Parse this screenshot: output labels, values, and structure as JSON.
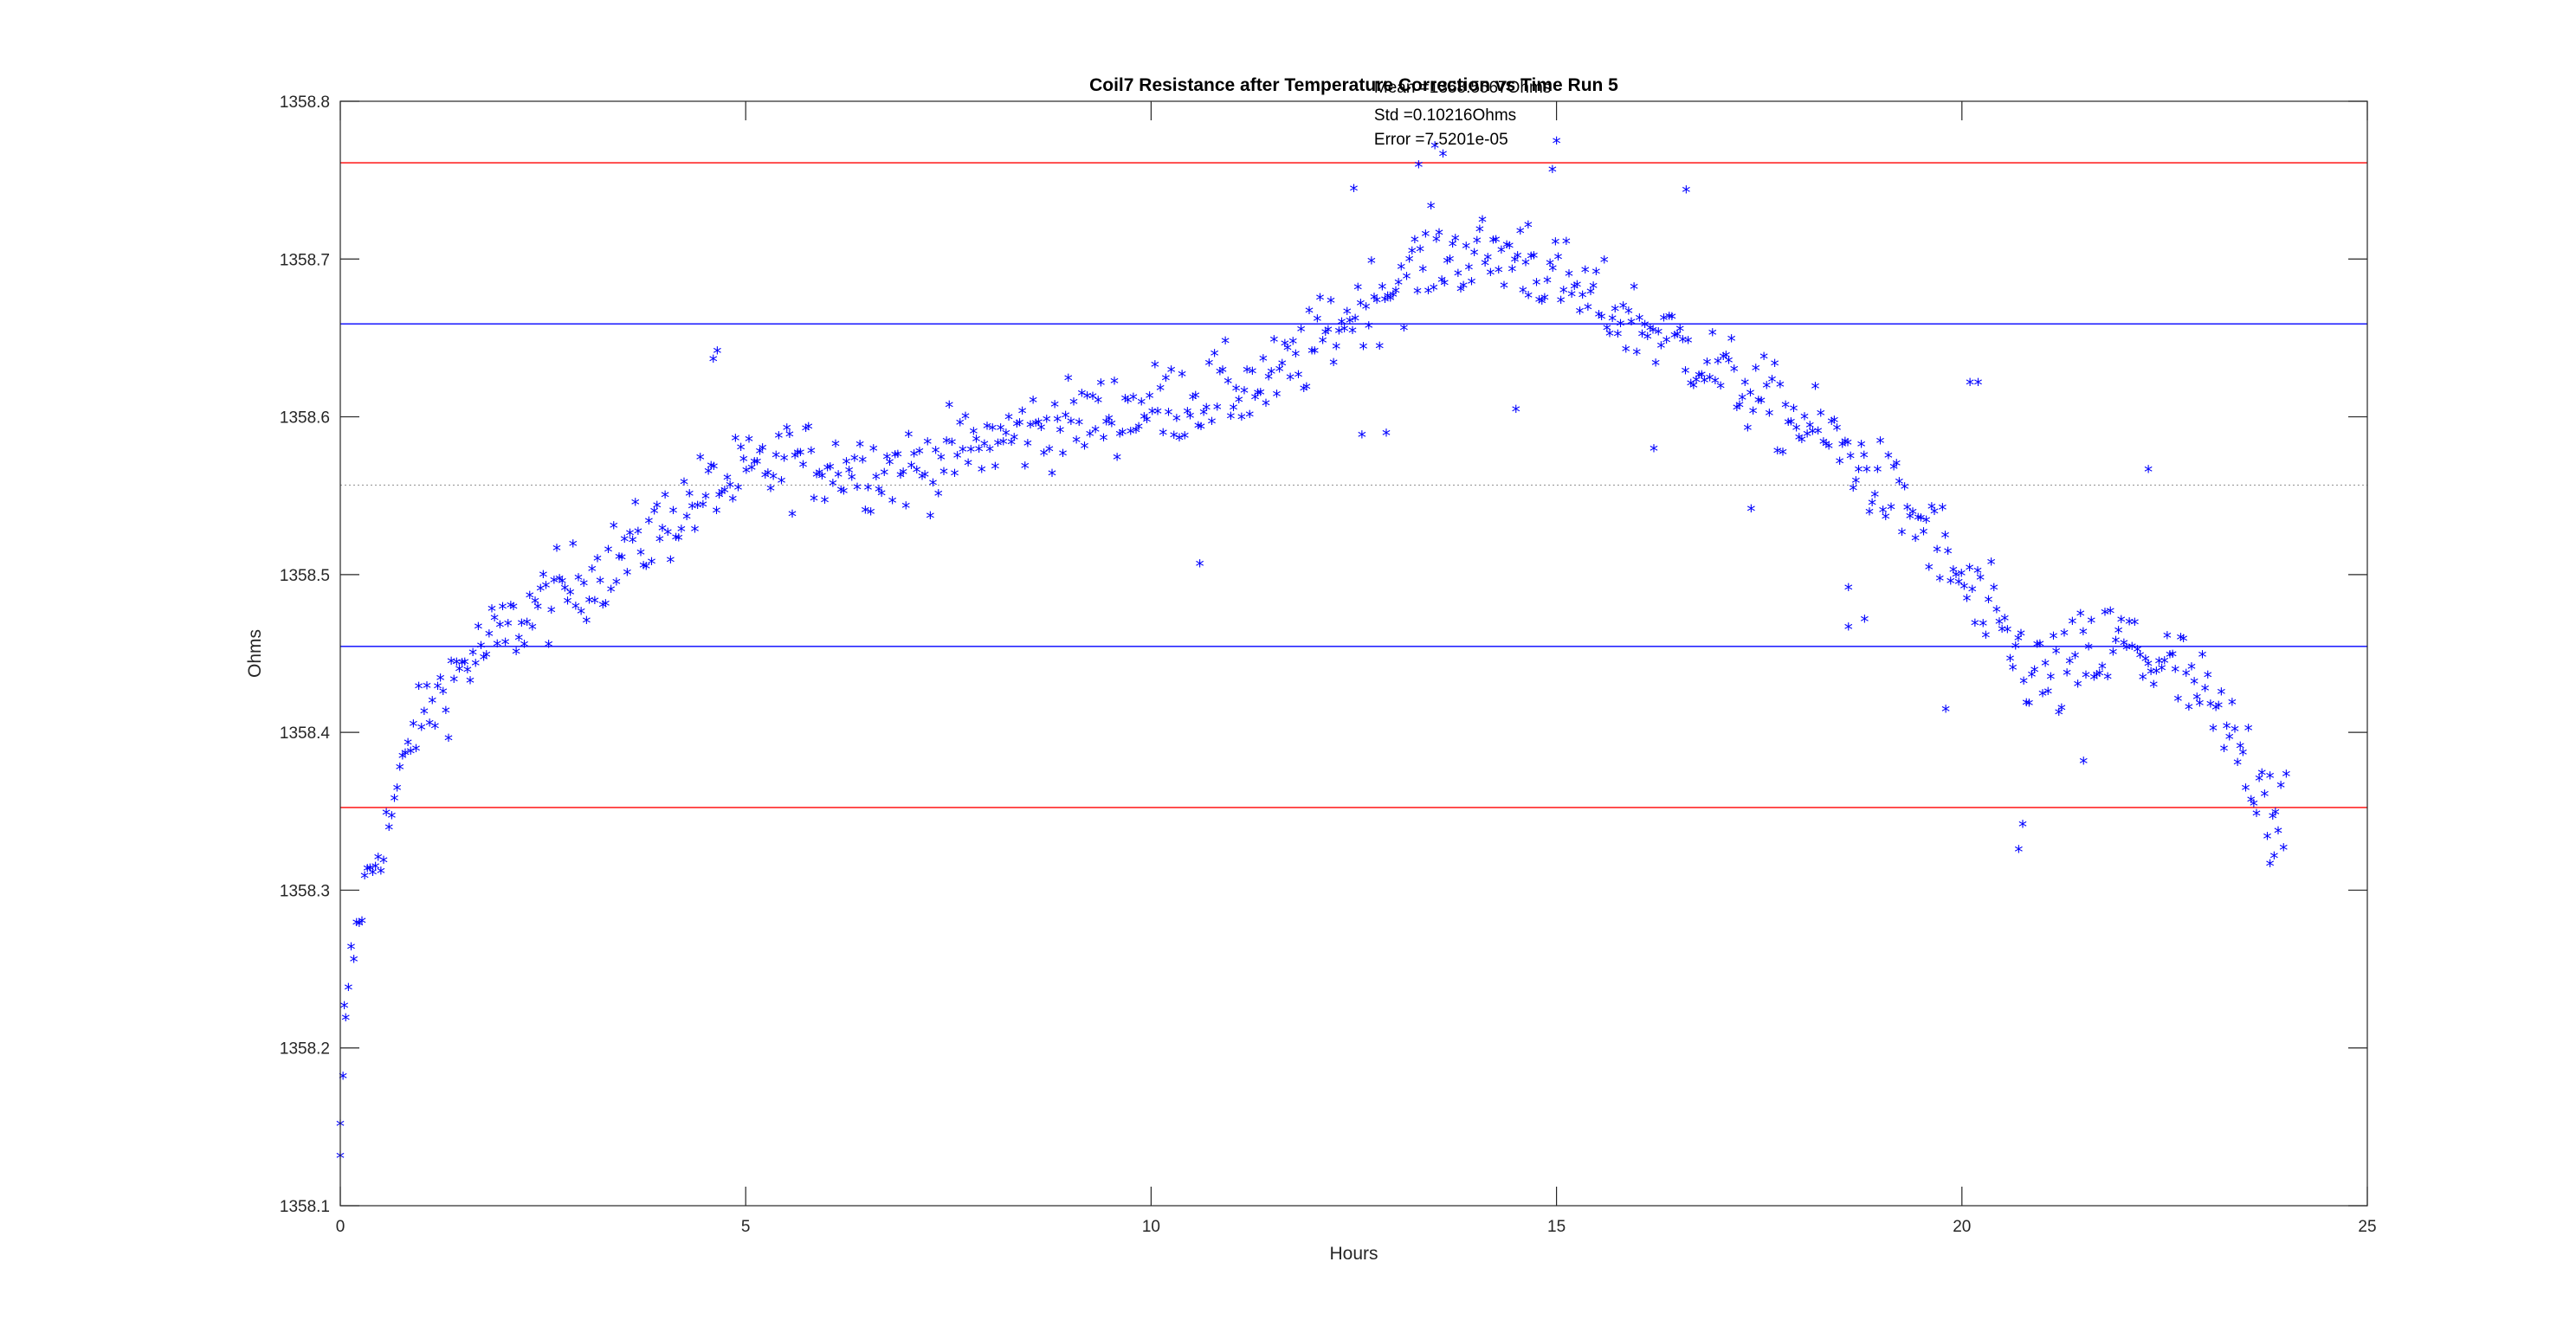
{
  "chart_data": {
    "type": "scatter",
    "title": "Coil7 Resistance after Temperature Correction vs Time Run 5",
    "xlabel": "Hours",
    "ylabel": "Ohms",
    "xlim": [
      0,
      25
    ],
    "ylim": [
      1358.1,
      1358.8
    ],
    "x_ticks": [
      0,
      5,
      10,
      15,
      20,
      25
    ],
    "x_tick_labels": [
      "0",
      "5",
      "10",
      "15",
      "20",
      "25"
    ],
    "y_ticks": [
      1358.1,
      1358.2,
      1358.3,
      1358.4,
      1358.5,
      1358.6,
      1358.7,
      1358.8
    ],
    "y_tick_labels": [
      "1358.1",
      "1358.2",
      "1358.3",
      "1358.4",
      "1358.5",
      "1358.6",
      "1358.7",
      "1358.8"
    ],
    "grid": false,
    "box": true,
    "marker": "*",
    "marker_color": "#0000ff",
    "annotations": [
      "Mean =1358.5567Ohms",
      "Std =0.10216Ohms",
      "Error =7.5201e-05"
    ],
    "reference_lines": [
      {
        "y": 1358.5567,
        "color": "#a0a0a0",
        "style": "dotted"
      },
      {
        "y": 1358.6589,
        "color": "#0000ff",
        "style": "solid"
      },
      {
        "y": 1358.4545,
        "color": "#0000ff",
        "style": "solid"
      },
      {
        "y": 1358.761,
        "color": "#ff0000",
        "style": "solid"
      },
      {
        "y": 1358.3524,
        "color": "#ff0000",
        "style": "solid"
      }
    ],
    "anchors": [
      [
        0.0,
        1358.14
      ],
      [
        0.1,
        1358.24
      ],
      [
        0.3,
        1358.3
      ],
      [
        0.6,
        1358.34
      ],
      [
        0.9,
        1358.4
      ],
      [
        1.5,
        1358.44
      ],
      [
        2.5,
        1358.48
      ],
      [
        3.5,
        1358.51
      ],
      [
        4.5,
        1358.55
      ],
      [
        5.5,
        1358.57
      ],
      [
        7.0,
        1358.565
      ],
      [
        8.5,
        1358.59
      ],
      [
        10.0,
        1358.605
      ],
      [
        11.5,
        1358.62
      ],
      [
        12.5,
        1358.665
      ],
      [
        13.5,
        1358.7
      ],
      [
        14.5,
        1358.7
      ],
      [
        15.5,
        1358.67
      ],
      [
        16.5,
        1358.645
      ],
      [
        17.5,
        1358.61
      ],
      [
        18.5,
        1358.58
      ],
      [
        19.5,
        1358.53
      ],
      [
        20.3,
        1358.47
      ],
      [
        21.0,
        1358.43
      ],
      [
        22.0,
        1358.455
      ],
      [
        22.8,
        1358.43
      ],
      [
        23.5,
        1358.38
      ],
      [
        24.0,
        1358.35
      ]
    ],
    "sample_count": 720,
    "outliers": [
      [
        0.0,
        1358.13
      ],
      [
        0.05,
        1358.225
      ],
      [
        4.65,
        1358.64
      ],
      [
        4.6,
        1358.635
      ],
      [
        10.6,
        1358.505
      ],
      [
        12.5,
        1358.743
      ],
      [
        12.6,
        1358.587
      ],
      [
        12.9,
        1358.588
      ],
      [
        13.3,
        1358.758
      ],
      [
        13.5,
        1358.77
      ],
      [
        13.6,
        1358.765
      ],
      [
        14.5,
        1358.603
      ],
      [
        14.65,
        1358.72
      ],
      [
        15.0,
        1358.773
      ],
      [
        14.95,
        1358.755
      ],
      [
        16.2,
        1358.578
      ],
      [
        16.6,
        1358.742
      ],
      [
        17.4,
        1358.54
      ],
      [
        18.6,
        1358.49
      ],
      [
        18.6,
        1358.465
      ],
      [
        18.8,
        1358.47
      ],
      [
        19.8,
        1358.413
      ],
      [
        20.7,
        1358.324
      ],
      [
        20.75,
        1358.34
      ],
      [
        21.5,
        1358.38
      ],
      [
        22.3,
        1358.565
      ],
      [
        23.8,
        1358.315
      ],
      [
        23.85,
        1358.32
      ],
      [
        20.1,
        1358.62
      ],
      [
        20.2,
        1358.62
      ]
    ]
  }
}
